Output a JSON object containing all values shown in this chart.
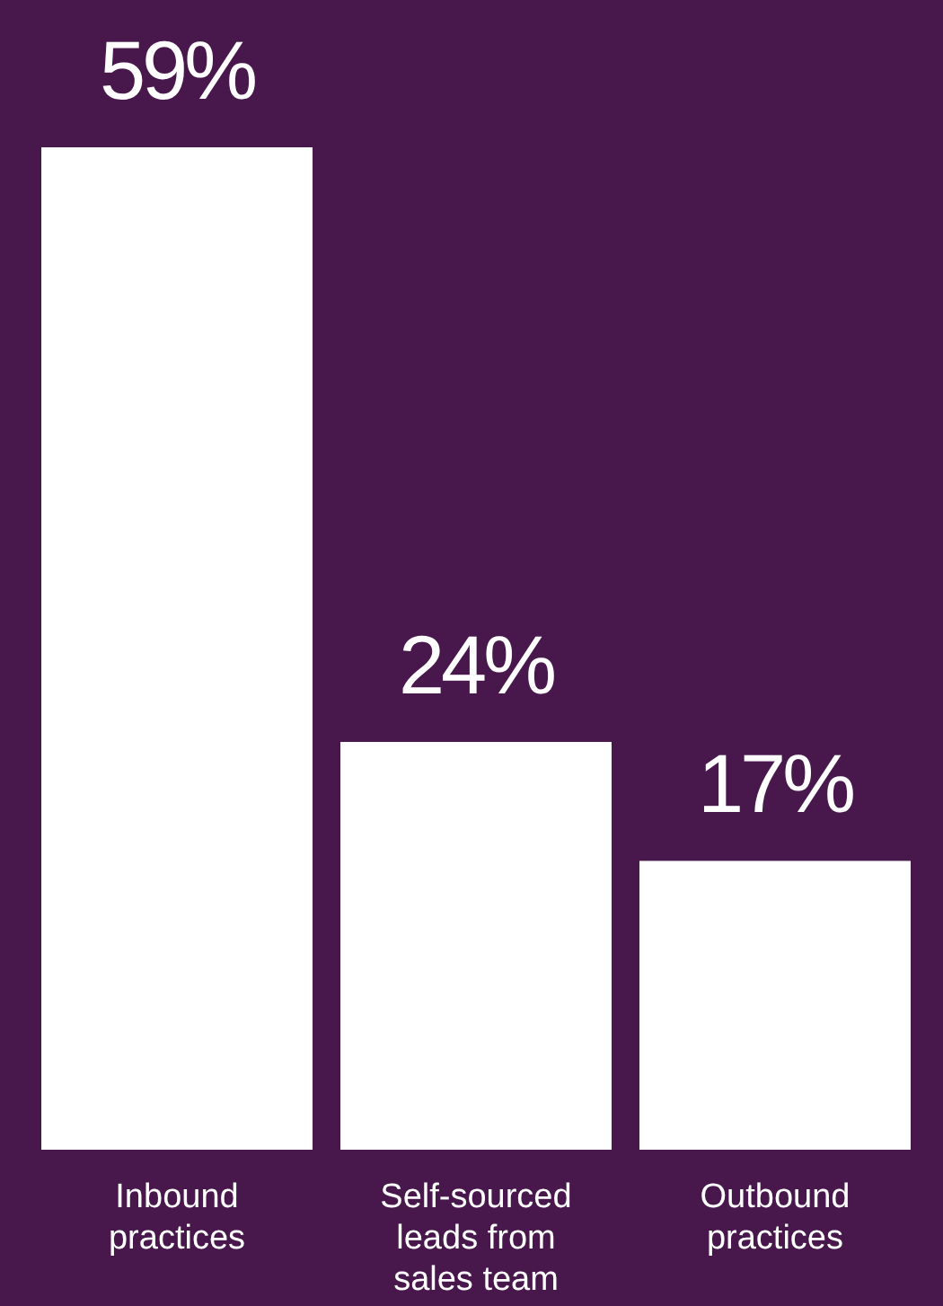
{
  "chart_data": {
    "type": "bar",
    "categories": [
      "Inbound practices",
      "Self-sourced leads from sales team",
      "Outbound practices"
    ],
    "values": [
      59,
      24,
      17
    ],
    "color": "#ffffff",
    "value_labels": [
      "59%",
      "24%",
      "17%"
    ],
    "tick_labels": "x"
  }
}
